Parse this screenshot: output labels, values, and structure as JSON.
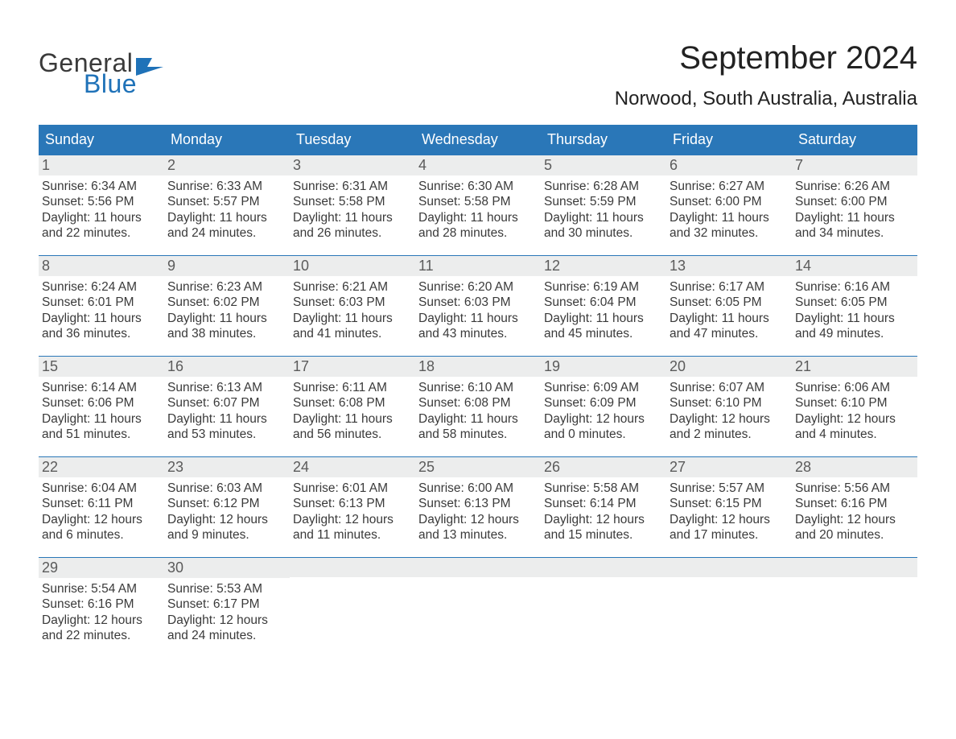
{
  "logo": {
    "text1": "General",
    "text2": "Blue",
    "shape_color": "#1f72b8"
  },
  "title": {
    "month": "September 2024",
    "location": "Norwood, South Australia, Australia"
  },
  "colors": {
    "header_bg": "#2a77b8",
    "header_text": "#ffffff",
    "daybar_bg": "#eceded",
    "body_text": "#3a3a3a",
    "border": "#2a77b8"
  },
  "day_headers": [
    "Sunday",
    "Monday",
    "Tuesday",
    "Wednesday",
    "Thursday",
    "Friday",
    "Saturday"
  ],
  "weeks": [
    [
      {
        "n": "1",
        "sr": "Sunrise: 6:34 AM",
        "ss": "Sunset: 5:56 PM",
        "d1": "Daylight: 11 hours",
        "d2": "and 22 minutes."
      },
      {
        "n": "2",
        "sr": "Sunrise: 6:33 AM",
        "ss": "Sunset: 5:57 PM",
        "d1": "Daylight: 11 hours",
        "d2": "and 24 minutes."
      },
      {
        "n": "3",
        "sr": "Sunrise: 6:31 AM",
        "ss": "Sunset: 5:58 PM",
        "d1": "Daylight: 11 hours",
        "d2": "and 26 minutes."
      },
      {
        "n": "4",
        "sr": "Sunrise: 6:30 AM",
        "ss": "Sunset: 5:58 PM",
        "d1": "Daylight: 11 hours",
        "d2": "and 28 minutes."
      },
      {
        "n": "5",
        "sr": "Sunrise: 6:28 AM",
        "ss": "Sunset: 5:59 PM",
        "d1": "Daylight: 11 hours",
        "d2": "and 30 minutes."
      },
      {
        "n": "6",
        "sr": "Sunrise: 6:27 AM",
        "ss": "Sunset: 6:00 PM",
        "d1": "Daylight: 11 hours",
        "d2": "and 32 minutes."
      },
      {
        "n": "7",
        "sr": "Sunrise: 6:26 AM",
        "ss": "Sunset: 6:00 PM",
        "d1": "Daylight: 11 hours",
        "d2": "and 34 minutes."
      }
    ],
    [
      {
        "n": "8",
        "sr": "Sunrise: 6:24 AM",
        "ss": "Sunset: 6:01 PM",
        "d1": "Daylight: 11 hours",
        "d2": "and 36 minutes."
      },
      {
        "n": "9",
        "sr": "Sunrise: 6:23 AM",
        "ss": "Sunset: 6:02 PM",
        "d1": "Daylight: 11 hours",
        "d2": "and 38 minutes."
      },
      {
        "n": "10",
        "sr": "Sunrise: 6:21 AM",
        "ss": "Sunset: 6:03 PM",
        "d1": "Daylight: 11 hours",
        "d2": "and 41 minutes."
      },
      {
        "n": "11",
        "sr": "Sunrise: 6:20 AM",
        "ss": "Sunset: 6:03 PM",
        "d1": "Daylight: 11 hours",
        "d2": "and 43 minutes."
      },
      {
        "n": "12",
        "sr": "Sunrise: 6:19 AM",
        "ss": "Sunset: 6:04 PM",
        "d1": "Daylight: 11 hours",
        "d2": "and 45 minutes."
      },
      {
        "n": "13",
        "sr": "Sunrise: 6:17 AM",
        "ss": "Sunset: 6:05 PM",
        "d1": "Daylight: 11 hours",
        "d2": "and 47 minutes."
      },
      {
        "n": "14",
        "sr": "Sunrise: 6:16 AM",
        "ss": "Sunset: 6:05 PM",
        "d1": "Daylight: 11 hours",
        "d2": "and 49 minutes."
      }
    ],
    [
      {
        "n": "15",
        "sr": "Sunrise: 6:14 AM",
        "ss": "Sunset: 6:06 PM",
        "d1": "Daylight: 11 hours",
        "d2": "and 51 minutes."
      },
      {
        "n": "16",
        "sr": "Sunrise: 6:13 AM",
        "ss": "Sunset: 6:07 PM",
        "d1": "Daylight: 11 hours",
        "d2": "and 53 minutes."
      },
      {
        "n": "17",
        "sr": "Sunrise: 6:11 AM",
        "ss": "Sunset: 6:08 PM",
        "d1": "Daylight: 11 hours",
        "d2": "and 56 minutes."
      },
      {
        "n": "18",
        "sr": "Sunrise: 6:10 AM",
        "ss": "Sunset: 6:08 PM",
        "d1": "Daylight: 11 hours",
        "d2": "and 58 minutes."
      },
      {
        "n": "19",
        "sr": "Sunrise: 6:09 AM",
        "ss": "Sunset: 6:09 PM",
        "d1": "Daylight: 12 hours",
        "d2": "and 0 minutes."
      },
      {
        "n": "20",
        "sr": "Sunrise: 6:07 AM",
        "ss": "Sunset: 6:10 PM",
        "d1": "Daylight: 12 hours",
        "d2": "and 2 minutes."
      },
      {
        "n": "21",
        "sr": "Sunrise: 6:06 AM",
        "ss": "Sunset: 6:10 PM",
        "d1": "Daylight: 12 hours",
        "d2": "and 4 minutes."
      }
    ],
    [
      {
        "n": "22",
        "sr": "Sunrise: 6:04 AM",
        "ss": "Sunset: 6:11 PM",
        "d1": "Daylight: 12 hours",
        "d2": "and 6 minutes."
      },
      {
        "n": "23",
        "sr": "Sunrise: 6:03 AM",
        "ss": "Sunset: 6:12 PM",
        "d1": "Daylight: 12 hours",
        "d2": "and 9 minutes."
      },
      {
        "n": "24",
        "sr": "Sunrise: 6:01 AM",
        "ss": "Sunset: 6:13 PM",
        "d1": "Daylight: 12 hours",
        "d2": "and 11 minutes."
      },
      {
        "n": "25",
        "sr": "Sunrise: 6:00 AM",
        "ss": "Sunset: 6:13 PM",
        "d1": "Daylight: 12 hours",
        "d2": "and 13 minutes."
      },
      {
        "n": "26",
        "sr": "Sunrise: 5:58 AM",
        "ss": "Sunset: 6:14 PM",
        "d1": "Daylight: 12 hours",
        "d2": "and 15 minutes."
      },
      {
        "n": "27",
        "sr": "Sunrise: 5:57 AM",
        "ss": "Sunset: 6:15 PM",
        "d1": "Daylight: 12 hours",
        "d2": "and 17 minutes."
      },
      {
        "n": "28",
        "sr": "Sunrise: 5:56 AM",
        "ss": "Sunset: 6:16 PM",
        "d1": "Daylight: 12 hours",
        "d2": "and 20 minutes."
      }
    ],
    [
      {
        "n": "29",
        "sr": "Sunrise: 5:54 AM",
        "ss": "Sunset: 6:16 PM",
        "d1": "Daylight: 12 hours",
        "d2": "and 22 minutes."
      },
      {
        "n": "30",
        "sr": "Sunrise: 5:53 AM",
        "ss": "Sunset: 6:17 PM",
        "d1": "Daylight: 12 hours",
        "d2": "and 24 minutes."
      },
      {
        "empty": true
      },
      {
        "empty": true
      },
      {
        "empty": true
      },
      {
        "empty": true
      },
      {
        "empty": true
      }
    ]
  ]
}
